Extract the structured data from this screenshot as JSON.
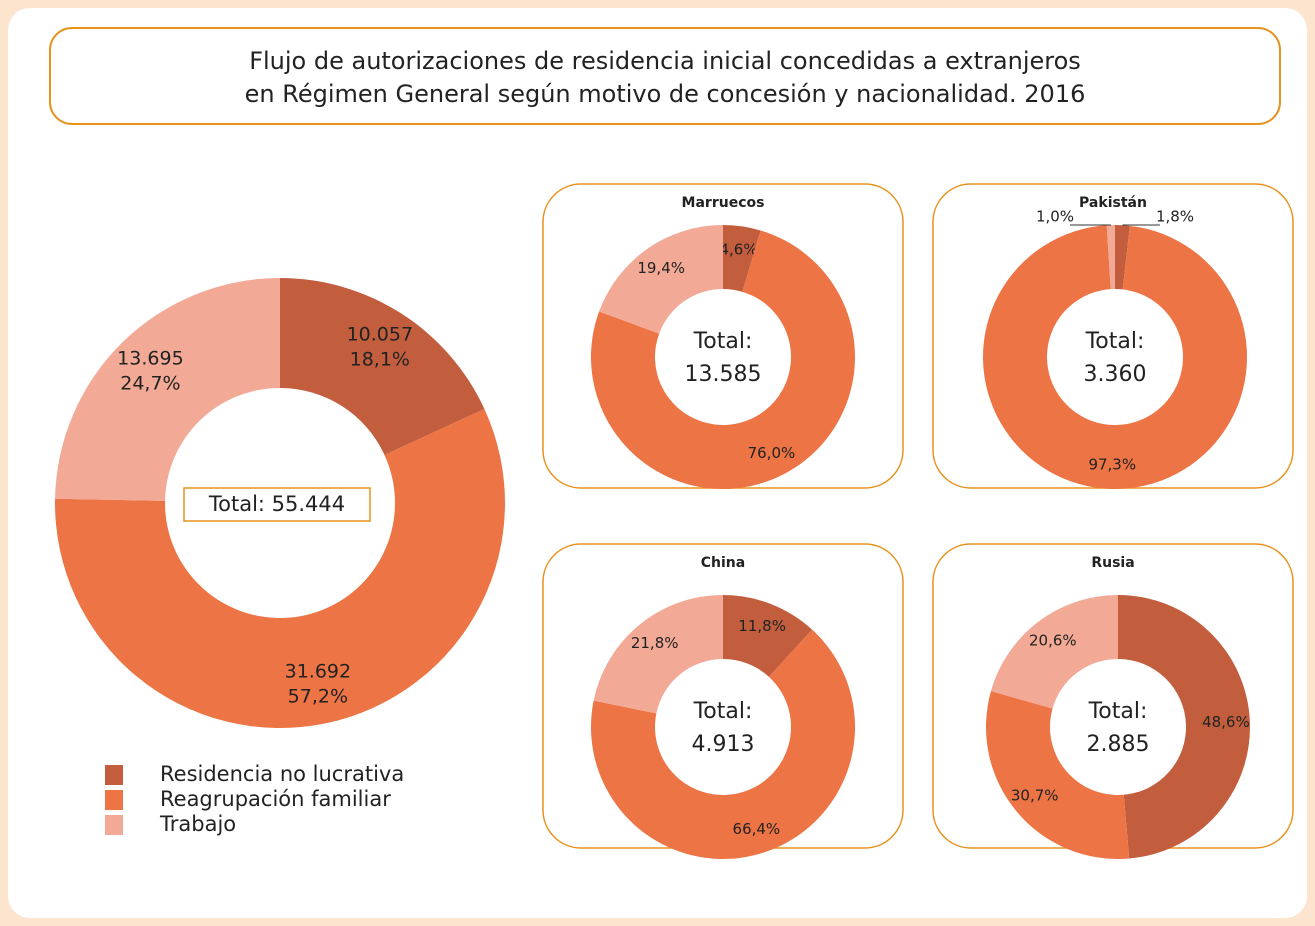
{
  "title": [
    "Flujo de autorizaciones de residencia inicial concedidas a extranjeros",
    "en Régimen General según motivo de concesión y nacionalidad. 2016"
  ],
  "chart_data": [
    {
      "type": "donut",
      "categories": [
        "Residencia no lucrativa",
        "Reagrupación familiar",
        "Trabajo"
      ],
      "colors": [
        "#c25e3e",
        "#ed7444",
        "#f2a996"
      ],
      "values": [
        10057,
        31692,
        13695
      ],
      "value_labels": [
        "10.057",
        "31.692",
        "13.695"
      ],
      "percents": [
        18.1,
        57.2,
        24.7
      ],
      "percent_labels": [
        "18,1%",
        "57,2%",
        "24,7%"
      ],
      "total_label": "Total: 55.444"
    },
    {
      "type": "donut",
      "title": "Marruecos",
      "colors": [
        "#c25e3e",
        "#ed7444",
        "#f2a996"
      ],
      "values": [
        4.6,
        76.0,
        19.4
      ],
      "value_labels": [
        "4,6%",
        "76,0%",
        "19,4%"
      ],
      "center_text": "Total:",
      "total_label": "13.585"
    },
    {
      "type": "donut",
      "title": "Pakistán",
      "colors": [
        "#c25e3e",
        "#ed7444",
        "#f2a996"
      ],
      "values": [
        1.8,
        97.3,
        1.0
      ],
      "value_labels": [
        "1,8%",
        "97,3%",
        "1,0%"
      ],
      "center_text": "Total:",
      "total_label": "3.360"
    },
    {
      "type": "donut",
      "title": "China",
      "colors": [
        "#c25e3e",
        "#ed7444",
        "#f2a996"
      ],
      "values": [
        11.8,
        66.4,
        21.8
      ],
      "value_labels": [
        "11,8%",
        "66,4%",
        "21,8%"
      ],
      "center_text": "Total:",
      "total_label": "4.913"
    },
    {
      "type": "donut",
      "title": "Rusia",
      "colors": [
        "#c25e3e",
        "#ed7444",
        "#f2a996"
      ],
      "values": [
        48.6,
        30.7,
        20.6
      ],
      "value_labels": [
        "48,6%",
        "30,7%",
        "20,6%"
      ],
      "center_text": "Total:",
      "total_label": "2.885"
    }
  ]
}
